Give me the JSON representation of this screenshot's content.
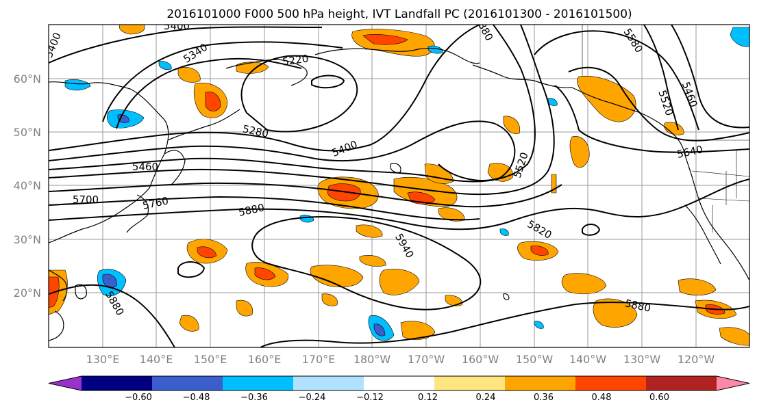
{
  "title": "2016101000 F000 500 hPa height, IVT Landfall PC (2016101300 - 2016101500)",
  "map": {
    "lat_labels": [
      "60°N",
      "50°N",
      "40°N",
      "30°N",
      "20°N"
    ],
    "lon_labels": [
      "130°E",
      "140°E",
      "150°E",
      "160°E",
      "170°E",
      "180°W",
      "170°W",
      "160°W",
      "150°W",
      "140°W",
      "130°W",
      "120°W"
    ],
    "contour_labels": [
      "5400",
      "5340",
      "5220",
      "5280",
      "5400",
      "5460",
      "5700",
      "5760",
      "5880",
      "5940",
      "5820",
      "5880",
      "5580",
      "5460",
      "5520",
      "5640",
      "5520",
      "5880",
      "5400",
      "5880",
      "5580"
    ],
    "colors": {
      "positive_low": "#ffe680",
      "positive_mid": "#ffa500",
      "positive_high": "#ff4500",
      "negative_low": "#00bfff",
      "negative_mid": "#3a5fcd",
      "negative_high": "#000080"
    }
  },
  "colorbar": {
    "tick_labels": [
      "−0.60",
      "−0.48",
      "−0.36",
      "−0.24",
      "−0.12",
      "0.12",
      "0.24",
      "0.36",
      "0.48",
      "0.60"
    ],
    "colors": [
      "#9932cc",
      "#000080",
      "#3a5fcd",
      "#00bfff",
      "#b0e2ff",
      "#ffffff",
      "#ffe680",
      "#ffa500",
      "#ff4500",
      "#b22222",
      "#ff88aa"
    ]
  }
}
